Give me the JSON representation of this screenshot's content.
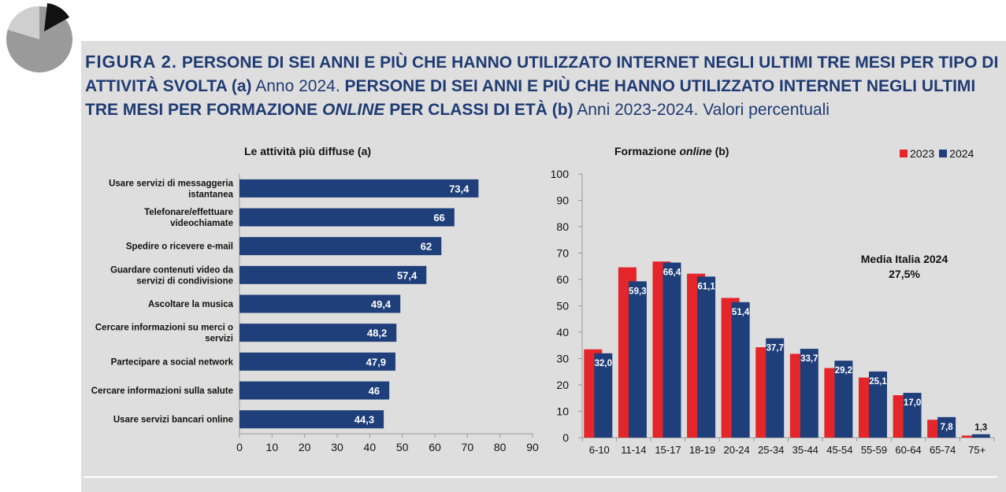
{
  "title": {
    "fig_label": "FIGURA 2.",
    "part1_bold": "PERSONE DI SEI ANNI E PIÙ CHE HANNO UTILIZZATO INTERNET NEGLI ULTIMI TRE MESI PER TIPO DI ATTIVITÀ SVOLTA (a)",
    "part1_normal": "Anno 2024.",
    "part2_bold": "PERSONE DI SEI ANNI E PIÙ CHE HANNO UTILIZZATO INTERNET NEGLI ULTIMI TRE MESI PER FORMAZIONE",
    "part2_italic": "ONLINE",
    "part2_bold_end": "PER CLASSI DI ETÀ (b)",
    "part2_normal": "Anni 2023-2024. Valori percentuali"
  },
  "colors": {
    "blue": "#1f3f7a",
    "red": "#e4262b",
    "panel": "#dedede",
    "title": "#1f3b73"
  },
  "chart_data": [
    {
      "type": "bar",
      "orientation": "horizontal",
      "title": "Le attività più diffuse (a)",
      "categories": [
        [
          "Usare servizi di messaggeria",
          "istantanea"
        ],
        [
          "Telefonare/effettuare",
          "videochiamate"
        ],
        [
          "Spedire o ricevere e-mail"
        ],
        [
          "Guardare contenuti video da",
          "servizi di condivisione"
        ],
        [
          "Ascoltare la musica"
        ],
        [
          "Cercare informazioni su merci o",
          "servizi"
        ],
        [
          "Partecipare a social network"
        ],
        [
          "Cercare informazioni sulla salute"
        ],
        [
          "Usare servizi bancari online"
        ]
      ],
      "values": [
        73.4,
        66,
        62,
        57.4,
        49.4,
        48.2,
        47.9,
        46,
        44.3
      ],
      "labels": [
        "73,4",
        "66",
        "62",
        "57,4",
        "49,4",
        "48,2",
        "47,9",
        "46",
        "44,3"
      ],
      "xlim": [
        0,
        90
      ],
      "xticks": [
        "0",
        "10",
        "20",
        "30",
        "40",
        "50",
        "60",
        "70",
        "80",
        "90"
      ],
      "color": "#1f3f7a"
    },
    {
      "type": "bar",
      "title_prefix": "Formazione ",
      "title_italic": "online",
      "title_suffix": " (b)",
      "categories": [
        "6-10",
        "11-14",
        "15-17",
        "18-19",
        "20-24",
        "25-34",
        "35-44",
        "45-54",
        "55-59",
        "60-64",
        "65-74",
        "75+"
      ],
      "series": [
        {
          "name": "2023",
          "color": "#e4262b",
          "values": [
            33.5,
            64.6,
            66.8,
            62.2,
            53,
            34.3,
            31.8,
            26.4,
            22.8,
            16.1,
            6.8,
            0.8
          ]
        },
        {
          "name": "2024",
          "color": "#1f3f7a",
          "values": [
            32.0,
            59.3,
            66.4,
            61.1,
            51.4,
            37.7,
            33.7,
            29.2,
            25.1,
            17.0,
            7.8,
            1.3
          ],
          "labels": [
            "32,0",
            "59,3",
            "66,4",
            "61,1",
            "51,4",
            "37,7",
            "33,7",
            "29,2",
            "25,1",
            "17,0",
            "7,8",
            "1,3"
          ]
        }
      ],
      "ylim": [
        0,
        100
      ],
      "yticks": [
        "0",
        "10",
        "20",
        "30",
        "40",
        "50",
        "60",
        "70",
        "80",
        "90",
        "100"
      ],
      "annotation": {
        "line1": "Media Italia 2024",
        "line2": "27,5%"
      },
      "legend_position": "top-right"
    }
  ]
}
